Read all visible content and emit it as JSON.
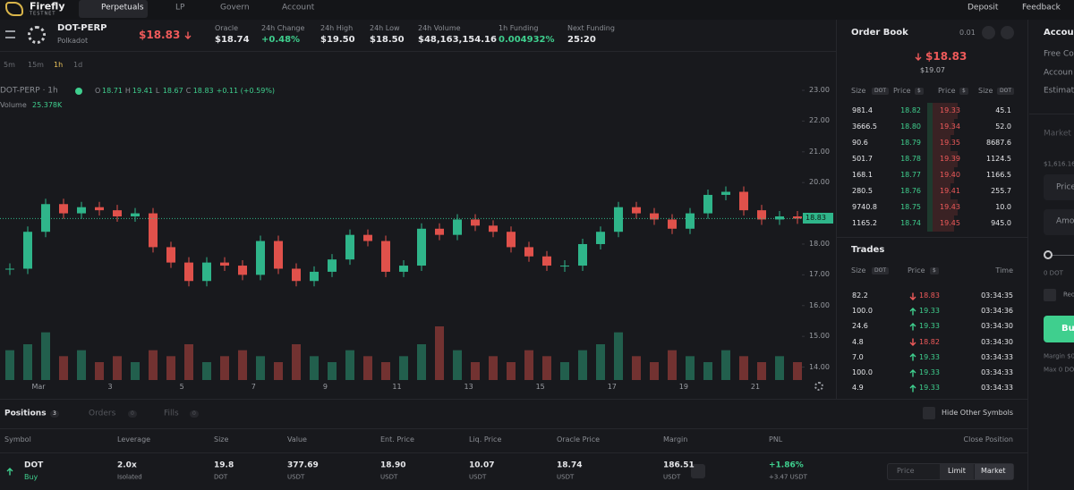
{
  "nav": {
    "brand": "Firefly",
    "brand_sub": "TESTNET",
    "tabs": [
      "Perpetuals",
      "LP",
      "Govern",
      "Account"
    ],
    "deposit": "Deposit",
    "feedback": "Feedback"
  },
  "market": {
    "symbol": "DOT-PERP",
    "name": "Polkadot",
    "price": "$18.83",
    "stats": [
      {
        "label": "Oracle",
        "value": "$18.74"
      },
      {
        "label": "24h Change",
        "value": "+0.48%"
      },
      {
        "label": "24h High",
        "value": "$19.50"
      },
      {
        "label": "24h Low",
        "value": "$18.50"
      },
      {
        "label": "24h Volume",
        "value": "$48,163,154.16"
      },
      {
        "label": "1h Funding",
        "value": "0.004932%"
      },
      {
        "label": "Next Funding",
        "value": "25:20"
      }
    ]
  },
  "toolbar": {
    "intervals": [
      "5m",
      "15m",
      "1h",
      "1d"
    ]
  },
  "chart": {
    "type": "candlestick",
    "legend": {
      "symbol": "DOT-PERP · 1h",
      "ohlc": [
        {
          "k": "O",
          "v": "18.71"
        },
        {
          "k": "H",
          "v": "19.41"
        },
        {
          "k": "L",
          "v": "18.67"
        },
        {
          "k": "C",
          "v": "18.83"
        }
      ],
      "change": "+0.11 (+0.59%)",
      "volume_label": "Volume",
      "volume": "25.378K"
    },
    "ylim": [
      13.58,
      23.32
    ],
    "yticks": [
      {
        "value": 23,
        "label": "23.00"
      },
      {
        "value": 22,
        "label": "22.00"
      },
      {
        "value": 21,
        "label": "21.00"
      },
      {
        "value": 20,
        "label": "20.00"
      },
      {
        "value": 18,
        "label": "18.00"
      },
      {
        "value": 17,
        "label": "17.00"
      },
      {
        "value": 16,
        "label": "16.00"
      },
      {
        "value": 15,
        "label": "15.00"
      },
      {
        "value": 14,
        "label": "14.00"
      }
    ],
    "x_labels": [
      "Mar",
      "3",
      "5",
      "7",
      "9",
      "11",
      "13",
      "15",
      "17",
      "19",
      "21"
    ],
    "last_price": 18.83,
    "up_color": "#2fb58a",
    "down_color": "#e0514b",
    "closes": [
      17.2,
      18.4,
      19.3,
      19.0,
      19.2,
      19.1,
      18.9,
      19.0,
      17.9,
      17.4,
      16.8,
      17.4,
      17.3,
      17.0,
      18.1,
      17.2,
      16.8,
      17.1,
      17.5,
      18.3,
      18.1,
      17.1,
      17.3,
      18.5,
      18.3,
      18.8,
      18.6,
      18.4,
      17.9,
      17.6,
      17.3,
      17.3,
      18.0,
      18.4,
      19.2,
      19.0,
      18.8,
      18.5,
      19.0,
      19.6,
      19.7,
      19.1,
      18.8,
      18.9,
      18.83
    ],
    "volumes": [
      5,
      6,
      8,
      4,
      5,
      3,
      4,
      3,
      5,
      4,
      6,
      3,
      4,
      5,
      4,
      3,
      6,
      4,
      3,
      5,
      4,
      3,
      4,
      6,
      9,
      5,
      3,
      4,
      3,
      5,
      4,
      3,
      5,
      6,
      8,
      4,
      3,
      5,
      4,
      3,
      5,
      4,
      3,
      4,
      3
    ]
  },
  "orderbook": {
    "title": "Order Book",
    "tick": "0.01",
    "mid_price": "$18.83",
    "mark_price": "$19.07",
    "headers": [
      "Size",
      "Price",
      "Price",
      "Size"
    ],
    "units": [
      "DOT",
      "$",
      "$",
      "DOT"
    ],
    "rows": [
      [
        "981.4",
        "18.82",
        "19.33",
        "45.1"
      ],
      [
        "3666.5",
        "18.80",
        "19.34",
        "52.0"
      ],
      [
        "90.6",
        "18.79",
        "19.35",
        "8687.6"
      ],
      [
        "501.7",
        "18.78",
        "19.39",
        "1124.5"
      ],
      [
        "168.1",
        "18.77",
        "19.40",
        "1166.5"
      ],
      [
        "280.5",
        "18.76",
        "19.41",
        "255.7"
      ],
      [
        "9740.8",
        "18.75",
        "19.43",
        "10.0"
      ],
      [
        "1165.2",
        "18.74",
        "19.45",
        "945.0"
      ]
    ]
  },
  "trades": {
    "title": "Trades",
    "headers": [
      "Size",
      "Price",
      "Time"
    ],
    "units": [
      "DOT",
      "$"
    ],
    "rows": [
      {
        "size": "82.2",
        "price": "18.83",
        "time": "03:34:35",
        "side": "sell"
      },
      {
        "size": "100.0",
        "price": "19.33",
        "time": "03:34:36",
        "side": "buy"
      },
      {
        "size": "24.6",
        "price": "19.33",
        "time": "03:34:30",
        "side": "buy"
      },
      {
        "size": "4.8",
        "price": "18.82",
        "time": "03:34:30",
        "side": "sell"
      },
      {
        "size": "7.0",
        "price": "19.33",
        "time": "03:34:33",
        "side": "buy"
      },
      {
        "size": "100.0",
        "price": "19.33",
        "time": "03:34:33",
        "side": "buy"
      },
      {
        "size": "4.9",
        "price": "19.33",
        "time": "03:34:33",
        "side": "buy"
      }
    ]
  },
  "positions": {
    "tabs": [
      {
        "label": "Positions",
        "count": "3"
      },
      {
        "label": "Orders",
        "count": "0"
      },
      {
        "label": "Fills",
        "count": "0"
      }
    ],
    "hide_other": "Hide Other Symbols",
    "columns": [
      "Symbol",
      "Leverage",
      "Size",
      "Value",
      "Ent. Price",
      "Liq. Price",
      "Oracle Price",
      "Margin",
      "PNL",
      "Close Position"
    ],
    "row": {
      "symbol": "DOT",
      "side": "Buy",
      "leverage": "2.0x",
      "margin_mode": "Isolated",
      "size": "19.8",
      "size_unit": "DOT",
      "value": "377.69",
      "value_unit": "USDT",
      "entry": "18.90",
      "entry_unit": "USDT",
      "liq": "10.07",
      "liq_unit": "USDT",
      "oracle": "18.74",
      "oracle_unit": "USDT",
      "margin": "186.51",
      "margin_unit": "USDT",
      "pnl": "+1.86%",
      "pnl_sub": "+3.47 USDT"
    },
    "close_buttons": [
      "Price",
      "Limit",
      "Market"
    ]
  },
  "right_panel": {
    "title": "Accou",
    "lines": [
      "Free Co",
      "Accoun",
      "Estimat"
    ],
    "market": "Market",
    "balance": "$1,616.16",
    "price_input": "Price",
    "amount_input": "Amo",
    "slider": "0 DOT",
    "reduce": "Red",
    "buy": "Bu",
    "margin": "Margin $0",
    "max": "Max 0 DO"
  }
}
